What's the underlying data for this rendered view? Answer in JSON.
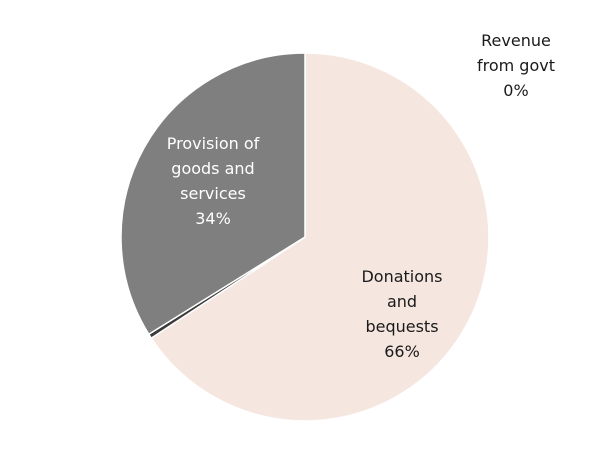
{
  "chart_data": {
    "type": "pie",
    "slices": [
      {
        "lines": [
          "Donations",
          "and",
          "bequests"
        ],
        "pct_label": "66%",
        "value": 66,
        "color": "#f5e6e0",
        "label_color": "#1a1a1a"
      },
      {
        "lines": [
          "Revenue",
          "from govt"
        ],
        "pct_label": "0%",
        "value": 0.4,
        "color": "#3a3a3a",
        "label_color": "#1a1a1a"
      },
      {
        "lines": [
          "Provision of",
          "goods and",
          "services"
        ],
        "pct_label": "34%",
        "value": 34,
        "color": "#7f7f7f",
        "label_color": "#ffffff"
      }
    ],
    "start_angle": "12 o'clock",
    "direction": "clockwise",
    "legend": "none"
  }
}
